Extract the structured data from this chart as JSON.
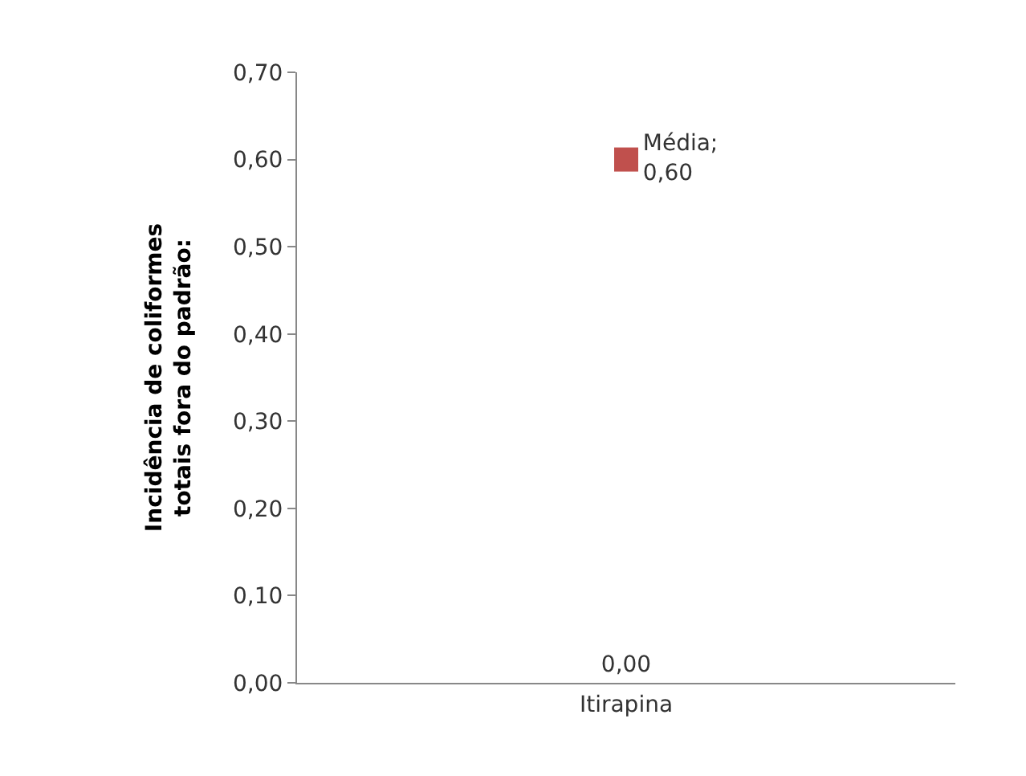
{
  "chart_data": {
    "type": "bar",
    "ylabel": "Incidência de coliformes totais fora do padrão:",
    "categories": [
      "Itirapina"
    ],
    "series": [
      {
        "color": "#4f81bd",
        "values": [
          0
        ],
        "value_labels": [
          "0,00"
        ]
      },
      {
        "type": "scatter",
        "color": "#c0504d",
        "values": [
          0.6
        ],
        "value_labels": [
          "Média; 0,60"
        ],
        "marker": "square"
      }
    ],
    "ylim": [
      0,
      0.7
    ],
    "yticks": [
      {
        "value": 0,
        "label": "0,00"
      },
      {
        "value": 0.1,
        "label": "0,10"
      },
      {
        "value": 0.2,
        "label": "0,20"
      },
      {
        "value": 0.3,
        "label": "0,30"
      },
      {
        "value": 0.4,
        "label": "0,40"
      },
      {
        "value": 0.5,
        "label": "0,50"
      },
      {
        "value": 0.6,
        "label": "0,60"
      },
      {
        "value": 0.7,
        "label": "0,70"
      }
    ],
    "grid": false,
    "legend": false
  }
}
